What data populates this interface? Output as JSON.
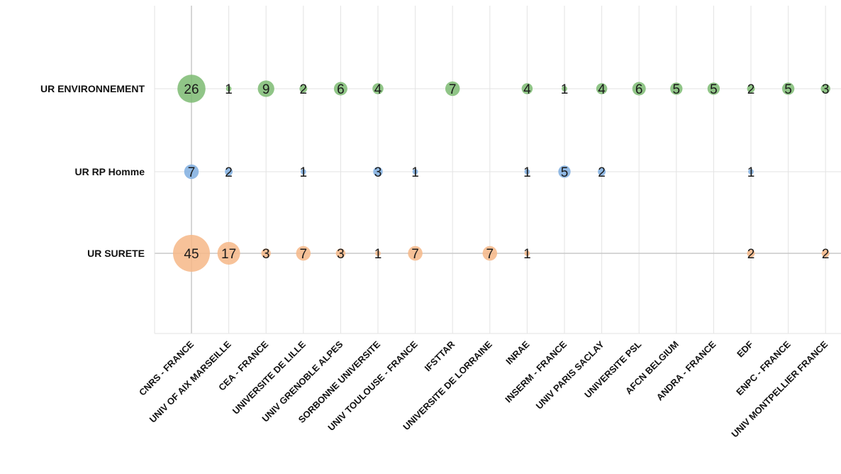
{
  "chart_data": {
    "type": "scatter",
    "x_categories": [
      "CNRS - FRANCE",
      "UNIV OF AIX MARSEILLE",
      "CEA - FRANCE",
      "UNIVERSITE DE LILLE",
      "UNIV GRENOBLE ALPES",
      "SORBONNE UNIVERSITE",
      "UNIV TOULOUSE - FRANCE",
      "IFSTTAR",
      "UNIVERSITE DE LORRAINE",
      "INRAE",
      "INSERM - FRANCE",
      "UNIV PARIS SACLAY",
      "UNIVERSITE PSL",
      "AFCN BELGIUM",
      "ANDRA - FRANCE",
      "EDF",
      "ENPC - FRANCE",
      "UNIV MONTPELLIER FRANCE"
    ],
    "y_categories": [
      "UR ENVIRONNEMENT",
      "UR RP Homme",
      "UR SURETE"
    ],
    "series": [
      {
        "y": "UR ENVIRONNEMENT",
        "color": "#7dbb72",
        "values": [
          26,
          1,
          9,
          2,
          6,
          4,
          null,
          7,
          null,
          4,
          1,
          4,
          6,
          5,
          5,
          2,
          5,
          3
        ]
      },
      {
        "y": "UR RP Homme",
        "color": "#7faee0",
        "values": [
          7,
          2,
          null,
          1,
          null,
          3,
          1,
          null,
          null,
          1,
          5,
          2,
          null,
          null,
          null,
          1,
          null,
          null
        ]
      },
      {
        "y": "UR SURETE",
        "color": "#f6b787",
        "values": [
          45,
          17,
          3,
          7,
          3,
          1,
          7,
          null,
          7,
          1,
          null,
          null,
          null,
          null,
          null,
          2,
          null,
          2
        ]
      }
    ],
    "size_encoding": "bubble area proportional to value",
    "grid": true,
    "legend": "none"
  }
}
